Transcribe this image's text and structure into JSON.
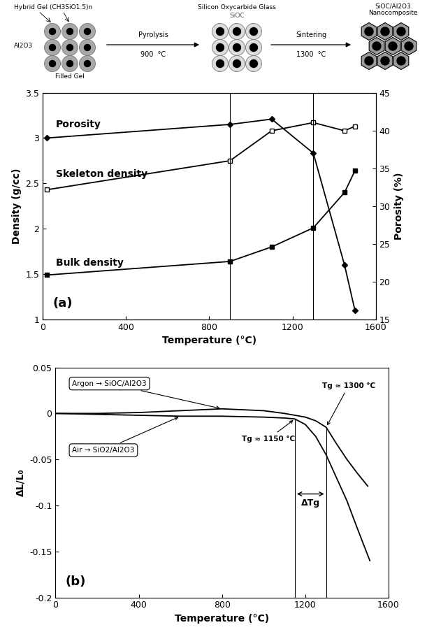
{
  "schematic": {
    "start": {
      "labels": [
        "Hybrid Gel (CH3SiO1.5)n",
        "Al2O3"
      ],
      "caption": "Filled Gel"
    },
    "step1": {
      "label": "Pyrolysis",
      "temperature": "900  °C"
    },
    "middle": {
      "title": "Silicon Oxycarbide Glass",
      "subtitle": "SiOC"
    },
    "step2": {
      "label": "Sintering",
      "temperature": "1300  °C"
    },
    "end": {
      "title": "SiOC/Al2O3\nNanocomposite"
    }
  },
  "chart_data": [
    {
      "type": "line",
      "panel": "(a)",
      "xlabel": "Temperature (°C)",
      "ylabel": "Density (g/cc)",
      "y2label": "Porosity (%)",
      "xlim": [
        0,
        1600
      ],
      "xticks": [
        0,
        400,
        800,
        1200,
        1600
      ],
      "ylim": [
        1,
        3.5
      ],
      "yticks": [
        1,
        1.5,
        2,
        2.5,
        3,
        3.5
      ],
      "y2lim": [
        15,
        45
      ],
      "y2ticks": [
        15,
        20,
        25,
        30,
        35,
        40,
        45
      ],
      "grid": false,
      "reference_lines": [
        900,
        1300
      ],
      "series": [
        {
          "name": "Porosity",
          "axis": "y2",
          "color": "#000000",
          "marker": "diamond",
          "x": [
            20,
            900,
            1100,
            1300,
            1450,
            1500
          ],
          "values": [
            39,
            40.8,
            41.5,
            37,
            22.2,
            16.2
          ]
        },
        {
          "name": "Skeleton density",
          "color": "#000000",
          "marker": "open_square",
          "x": [
            20,
            900,
            1100,
            1300,
            1450,
            1500
          ],
          "values": [
            2.43,
            2.75,
            3.08,
            3.17,
            3.08,
            3.13
          ]
        },
        {
          "name": "Bulk density",
          "color": "#000000",
          "marker": "square",
          "x": [
            20,
            900,
            1100,
            1300,
            1450,
            1500
          ],
          "values": [
            1.49,
            1.64,
            1.8,
            2.01,
            2.4,
            2.64
          ]
        }
      ]
    },
    {
      "type": "line",
      "panel": "(b)",
      "xlabel": "Temperature (°C)",
      "ylabel": "ΔL/L₀",
      "xlim": [
        0,
        1600
      ],
      "xticks": [
        0,
        400,
        800,
        1200,
        1600
      ],
      "ylim": [
        -0.2,
        0.05
      ],
      "yticks": [
        -0.2,
        -0.15,
        -0.1,
        -0.05,
        0,
        0.05
      ],
      "grid": false,
      "reference_lines": [
        1300,
        1150
      ],
      "annotations": [
        {
          "text": "Tg ≈ 1300 °C",
          "x": 1300
        },
        {
          "text": "Tg ≈ 1150 °C",
          "x": 1150
        }
      ],
      "interval_label": "ΔTg",
      "series": [
        {
          "name": "Argon → SiOC/Al2O3",
          "color": "#000000",
          "x": [
            0,
            200,
            400,
            600,
            800,
            1000,
            1100,
            1200,
            1250,
            1300,
            1350,
            1400,
            1450,
            1500
          ],
          "values": [
            0,
            0,
            0.001,
            0.003,
            0.005,
            0.003,
            0.0,
            -0.004,
            -0.008,
            -0.015,
            -0.033,
            -0.05,
            -0.065,
            -0.079
          ]
        },
        {
          "name": "Air → SiO2/Al2O3",
          "color": "#000000",
          "x": [
            0,
            200,
            400,
            600,
            800,
            1000,
            1100,
            1150,
            1200,
            1250,
            1300,
            1350,
            1400,
            1450,
            1510
          ],
          "values": [
            0,
            -0.001,
            -0.002,
            -0.003,
            -0.003,
            -0.004,
            -0.005,
            -0.006,
            -0.012,
            -0.025,
            -0.045,
            -0.07,
            -0.095,
            -0.125,
            -0.16
          ]
        }
      ]
    }
  ]
}
